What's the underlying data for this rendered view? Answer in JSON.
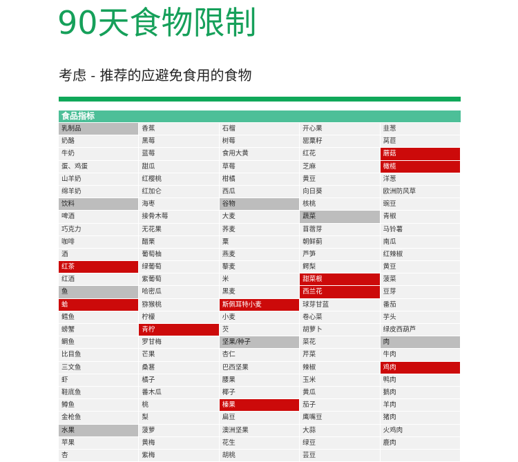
{
  "page": {
    "title": "90天食物限制",
    "subtitle": "考虑 - 推荐的应避免食用的食物"
  },
  "table": {
    "header": "食品指标",
    "columns": [
      [
        {
          "text": "乳制品",
          "type": "category"
        },
        {
          "text": "奶酪",
          "type": "normal"
        },
        {
          "text": "牛奶",
          "type": "normal"
        },
        {
          "text": "蛋、鸡蛋",
          "type": "normal"
        },
        {
          "text": "山羊奶",
          "type": "normal"
        },
        {
          "text": "绵羊奶",
          "type": "normal"
        },
        {
          "text": "饮料",
          "type": "category"
        },
        {
          "text": "啤酒",
          "type": "normal"
        },
        {
          "text": "巧克力",
          "type": "normal"
        },
        {
          "text": "咖啡",
          "type": "normal"
        },
        {
          "text": "酒",
          "type": "normal"
        },
        {
          "text": "红茶",
          "type": "highlight"
        },
        {
          "text": "红酒",
          "type": "normal"
        },
        {
          "text": "鱼",
          "type": "category"
        },
        {
          "text": "蛤",
          "type": "highlight"
        },
        {
          "text": "鳕鱼",
          "type": "normal"
        },
        {
          "text": "螃蟹",
          "type": "normal"
        },
        {
          "text": "鲷鱼",
          "type": "normal"
        },
        {
          "text": "比目鱼",
          "type": "normal"
        },
        {
          "text": "三文鱼",
          "type": "normal"
        },
        {
          "text": "虾",
          "type": "normal"
        },
        {
          "text": "鞋底鱼",
          "type": "normal"
        },
        {
          "text": "鳟鱼",
          "type": "normal"
        },
        {
          "text": "金枪鱼",
          "type": "normal"
        },
        {
          "text": "水果",
          "type": "category"
        },
        {
          "text": "苹果",
          "type": "normal"
        },
        {
          "text": "杏",
          "type": "normal"
        }
      ],
      [
        {
          "text": "香蕉",
          "type": "normal"
        },
        {
          "text": "黑莓",
          "type": "normal"
        },
        {
          "text": "蓝莓",
          "type": "normal"
        },
        {
          "text": "甜瓜",
          "type": "normal"
        },
        {
          "text": "红樱桃",
          "type": "normal"
        },
        {
          "text": "红加仑",
          "type": "normal"
        },
        {
          "text": "海枣",
          "type": "normal"
        },
        {
          "text": "接骨木莓",
          "type": "normal"
        },
        {
          "text": "无花果",
          "type": "normal"
        },
        {
          "text": "醋栗",
          "type": "normal"
        },
        {
          "text": "葡萄柚",
          "type": "normal"
        },
        {
          "text": "绿葡萄",
          "type": "normal"
        },
        {
          "text": "紫葡萄",
          "type": "normal"
        },
        {
          "text": "哈密瓜",
          "type": "normal"
        },
        {
          "text": "猕猴桃",
          "type": "normal"
        },
        {
          "text": "柠檬",
          "type": "normal"
        },
        {
          "text": "青柠",
          "type": "highlight"
        },
        {
          "text": "罗甘梅",
          "type": "normal"
        },
        {
          "text": "芒果",
          "type": "normal"
        },
        {
          "text": "桑葚",
          "type": "normal"
        },
        {
          "text": "橘子",
          "type": "normal"
        },
        {
          "text": "番木瓜",
          "type": "normal"
        },
        {
          "text": "桃",
          "type": "normal"
        },
        {
          "text": "梨",
          "type": "normal"
        },
        {
          "text": "菠萝",
          "type": "normal"
        },
        {
          "text": "黄梅",
          "type": "normal"
        },
        {
          "text": "紫梅",
          "type": "normal"
        }
      ],
      [
        {
          "text": "石榴",
          "type": "normal"
        },
        {
          "text": "树莓",
          "type": "normal"
        },
        {
          "text": "食用大黄",
          "type": "normal"
        },
        {
          "text": "草莓",
          "type": "normal"
        },
        {
          "text": "柑橘",
          "type": "normal"
        },
        {
          "text": "西瓜",
          "type": "normal"
        },
        {
          "text": "谷物",
          "type": "category"
        },
        {
          "text": "大麦",
          "type": "normal"
        },
        {
          "text": "荞麦",
          "type": "normal"
        },
        {
          "text": "粟",
          "type": "normal"
        },
        {
          "text": "燕麦",
          "type": "normal"
        },
        {
          "text": "藜麦",
          "type": "normal"
        },
        {
          "text": "米",
          "type": "normal"
        },
        {
          "text": "黑麦",
          "type": "normal"
        },
        {
          "text": "斯佩耳特小麦",
          "type": "highlight"
        },
        {
          "text": "小麦",
          "type": "normal"
        },
        {
          "text": "芡",
          "type": "normal"
        },
        {
          "text": "坚果/种子",
          "type": "category"
        },
        {
          "text": "杏仁",
          "type": "normal"
        },
        {
          "text": "巴西坚果",
          "type": "normal"
        },
        {
          "text": "腰果",
          "type": "normal"
        },
        {
          "text": "椰子",
          "type": "normal"
        },
        {
          "text": "榛果",
          "type": "highlight"
        },
        {
          "text": "扁豆",
          "type": "normal"
        },
        {
          "text": "澳洲坚果",
          "type": "normal"
        },
        {
          "text": "花生",
          "type": "normal"
        },
        {
          "text": "胡桃",
          "type": "normal"
        }
      ],
      [
        {
          "text": "开心果",
          "type": "normal"
        },
        {
          "text": "罂粟籽",
          "type": "normal"
        },
        {
          "text": "红花",
          "type": "normal"
        },
        {
          "text": "芝麻",
          "type": "normal"
        },
        {
          "text": "黄豆",
          "type": "normal"
        },
        {
          "text": "向日葵",
          "type": "normal"
        },
        {
          "text": "核桃",
          "type": "normal"
        },
        {
          "text": "蔬菜",
          "type": "category"
        },
        {
          "text": "苜蓿芽",
          "type": "normal"
        },
        {
          "text": "朝鲜蓟",
          "type": "normal"
        },
        {
          "text": "芦笋",
          "type": "normal"
        },
        {
          "text": "鳄梨",
          "type": "normal"
        },
        {
          "text": "甜菜根",
          "type": "highlight"
        },
        {
          "text": "西兰花",
          "type": "highlight"
        },
        {
          "text": "球芽甘蓝",
          "type": "normal"
        },
        {
          "text": "卷心菜",
          "type": "normal"
        },
        {
          "text": "胡萝卜",
          "type": "normal"
        },
        {
          "text": "菜花",
          "type": "normal"
        },
        {
          "text": "芹菜",
          "type": "normal"
        },
        {
          "text": "辣椒",
          "type": "normal"
        },
        {
          "text": "玉米",
          "type": "normal"
        },
        {
          "text": "黄瓜",
          "type": "normal"
        },
        {
          "text": "茄子",
          "type": "normal"
        },
        {
          "text": "鹰嘴豆",
          "type": "normal"
        },
        {
          "text": "大蒜",
          "type": "normal"
        },
        {
          "text": "绿豆",
          "type": "normal"
        },
        {
          "text": "芸豆",
          "type": "normal"
        }
      ],
      [
        {
          "text": "韭葱",
          "type": "normal"
        },
        {
          "text": "莴苣",
          "type": "normal"
        },
        {
          "text": "蘑菇",
          "type": "highlight"
        },
        {
          "text": "橄榄",
          "type": "highlight"
        },
        {
          "text": "洋葱",
          "type": "normal"
        },
        {
          "text": "欧洲防风草",
          "type": "normal"
        },
        {
          "text": "豌豆",
          "type": "normal"
        },
        {
          "text": "青椒",
          "type": "normal"
        },
        {
          "text": "马铃薯",
          "type": "normal"
        },
        {
          "text": "南瓜",
          "type": "normal"
        },
        {
          "text": "红辣椒",
          "type": "normal"
        },
        {
          "text": "黄豆",
          "type": "normal"
        },
        {
          "text": "菠菜",
          "type": "normal"
        },
        {
          "text": "豆芽",
          "type": "normal"
        },
        {
          "text": "番茄",
          "type": "normal"
        },
        {
          "text": "芋头",
          "type": "normal"
        },
        {
          "text": "绿皮西葫芦",
          "type": "normal"
        },
        {
          "text": "肉",
          "type": "category"
        },
        {
          "text": "牛肉",
          "type": "normal"
        },
        {
          "text": "鸡肉",
          "type": "highlight"
        },
        {
          "text": "鸭肉",
          "type": "normal"
        },
        {
          "text": "鹅肉",
          "type": "normal"
        },
        {
          "text": "羊肉",
          "type": "normal"
        },
        {
          "text": "猪肉",
          "type": "normal"
        },
        {
          "text": "火鸡肉",
          "type": "normal"
        },
        {
          "text": "鹿肉",
          "type": "normal"
        },
        {
          "text": "",
          "type": "normal"
        }
      ]
    ]
  },
  "colors": {
    "title": "#16a05a",
    "rule": "#10a85a",
    "header_bg": "#4dbf98",
    "category_bg": "#bdbdbd",
    "highlight_bg": "#cc0a0a",
    "cell_bg": "#f1f1f1"
  }
}
